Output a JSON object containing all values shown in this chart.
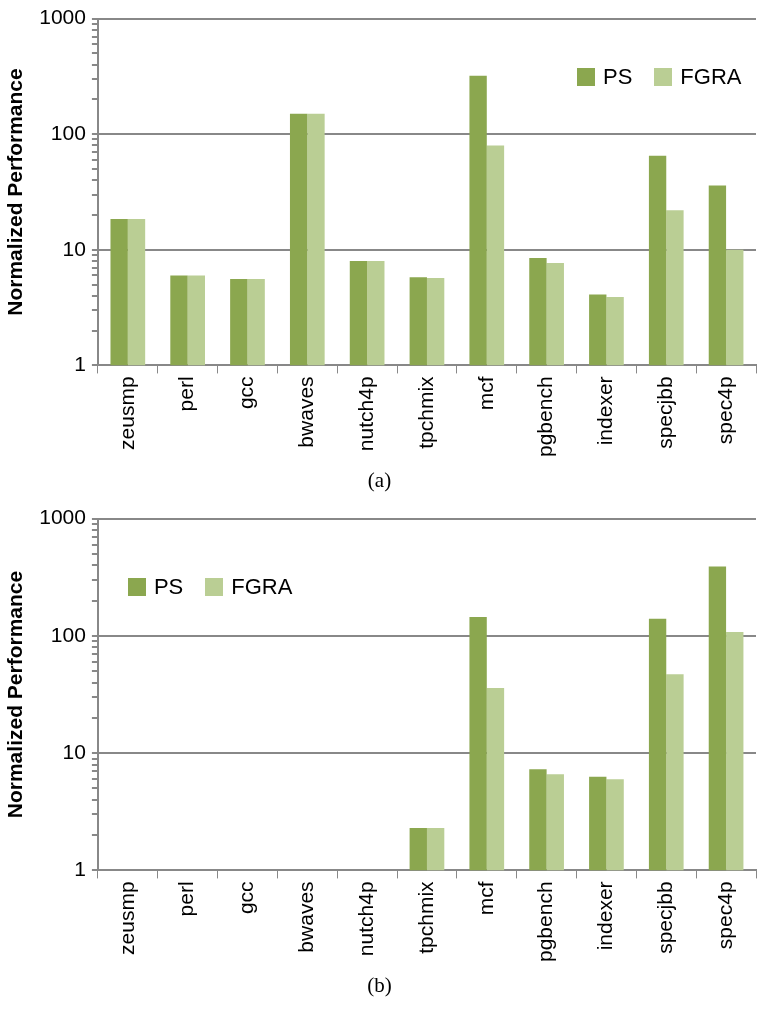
{
  "chart_data": [
    {
      "type": "bar",
      "ylabel": "Normalized Performance",
      "categories": [
        "zeusmp",
        "perl",
        "gcc",
        "bwaves",
        "nutch4p",
        "tpchmix",
        "mcf",
        "pgbench",
        "indexer",
        "specjbb",
        "spec4p"
      ],
      "series": [
        {
          "name": "PS",
          "color": "#8ba74f",
          "values": [
            18.5,
            6,
            5.6,
            150,
            8,
            5.8,
            320,
            8.5,
            4.1,
            65,
            36
          ]
        },
        {
          "name": "FGRA",
          "color": "#bace94",
          "values": [
            18.5,
            6,
            5.6,
            150,
            8,
            5.7,
            80,
            7.7,
            3.9,
            22,
            10
          ]
        }
      ],
      "log": "y",
      "ylim": [
        1,
        1000
      ],
      "yticks": [
        1,
        {
          "value": 2,
          "label": null
        },
        {
          "value": 3,
          "label": null
        },
        {
          "value": 4,
          "label": null
        },
        {
          "value": 5,
          "label": null
        },
        {
          "value": 6,
          "label": null
        },
        {
          "value": 7,
          "label": null
        },
        {
          "value": 8,
          "label": null
        },
        {
          "value": 9,
          "label": null
        },
        10,
        {
          "value": 20,
          "label": null
        },
        {
          "value": 30,
          "label": null
        },
        {
          "value": 40,
          "label": null
        },
        {
          "value": 50,
          "label": null
        },
        {
          "value": 60,
          "label": null
        },
        {
          "value": 70,
          "label": null
        },
        {
          "value": 80,
          "label": null
        },
        {
          "value": 90,
          "label": null
        },
        100,
        {
          "value": 200,
          "label": null
        },
        {
          "value": 300,
          "label": null
        },
        {
          "value": 400,
          "label": null
        },
        {
          "value": 500,
          "label": null
        },
        {
          "value": 600,
          "label": null
        },
        {
          "value": 700,
          "label": null
        },
        {
          "value": 800,
          "label": null
        },
        {
          "value": 900,
          "label": null
        },
        1000
      ],
      "grid": "y",
      "legend": "top right",
      "annotations": [
        "(a)"
      ]
    },
    {
      "type": "bar",
      "ylabel": "Normalized Performance",
      "categories": [
        "zeusmp",
        "perl",
        "gcc",
        "bwaves",
        "nutch4p",
        "tpchmix",
        "mcf",
        "pgbench",
        "indexer",
        "specjbb",
        "spec4p"
      ],
      "series": [
        {
          "name": "PS",
          "color": "#8ba74f",
          "values": [
            null,
            null,
            null,
            null,
            null,
            2.3,
            145,
            7.3,
            6.3,
            140,
            390
          ]
        },
        {
          "name": "FGRA",
          "color": "#bace94",
          "values": [
            null,
            null,
            null,
            null,
            null,
            2.3,
            36,
            6.6,
            6,
            47,
            108
          ]
        }
      ],
      "log": "y",
      "ylim": [
        1,
        1000
      ],
      "yticks": [
        1,
        {
          "value": 2,
          "label": null
        },
        {
          "value": 3,
          "label": null
        },
        {
          "value": 4,
          "label": null
        },
        {
          "value": 5,
          "label": null
        },
        {
          "value": 6,
          "label": null
        },
        {
          "value": 7,
          "label": null
        },
        {
          "value": 8,
          "label": null
        },
        {
          "value": 9,
          "label": null
        },
        10,
        {
          "value": 20,
          "label": null
        },
        {
          "value": 30,
          "label": null
        },
        {
          "value": 40,
          "label": null
        },
        {
          "value": 50,
          "label": null
        },
        {
          "value": 60,
          "label": null
        },
        {
          "value": 70,
          "label": null
        },
        {
          "value": 80,
          "label": null
        },
        {
          "value": 90,
          "label": null
        },
        100,
        {
          "value": 200,
          "label": null
        },
        {
          "value": 300,
          "label": null
        },
        {
          "value": 400,
          "label": null
        },
        {
          "value": 500,
          "label": null
        },
        {
          "value": 600,
          "label": null
        },
        {
          "value": 700,
          "label": null
        },
        {
          "value": 800,
          "label": null
        },
        {
          "value": 900,
          "label": null
        },
        1000
      ],
      "grid": "y",
      "legend": "top left",
      "annotations": [
        "(b)"
      ]
    }
  ]
}
